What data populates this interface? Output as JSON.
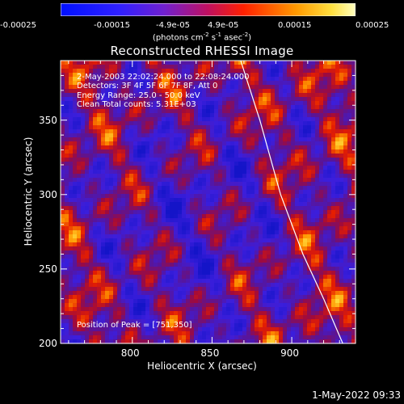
{
  "colorbar": {
    "ticks": [
      "-0.00025",
      "-0.00015",
      "-4.9e-05",
      "4.9e-05",
      "0.00015",
      "0.00025"
    ],
    "unit_main": "(photons cm",
    "unit_sup1": "-2",
    "unit_mid": " s",
    "unit_sup2": "-1",
    "unit_end": " asec",
    "unit_sup3": "-2",
    "unit_close": ")",
    "range": [
      -0.00025,
      0.00025
    ]
  },
  "annotations": {
    "line1": "2-May-2003 22:02:24.000 to 22:08:24.000",
    "line2": "Detectors: 3F 4F 5F 6F 7F 8F, Att 0",
    "line3": "Energy Range: 25.0 - 50.0 keV",
    "line4": "Clean     Total counts: 5.31E+03",
    "peak": "Position of Peak = [751,350]"
  },
  "footer": {
    "timestamp": "1-May-2022 09:33"
  },
  "chart_data": {
    "type": "heatmap",
    "title": "Reconstructed RHESSI Image",
    "xlabel": "Heliocentric X (arcsec)",
    "ylabel": "Heliocentric Y (arcsec)",
    "xlim": [
      755,
      940
    ],
    "ylim": [
      200,
      390
    ],
    "xticks": [
      800,
      850,
      900
    ],
    "yticks": [
      200,
      250,
      300,
      350
    ],
    "limb": [
      [
        868,
        390
      ],
      [
        880,
        350
      ],
      [
        893,
        300
      ],
      [
        907,
        260
      ],
      [
        920,
        230
      ],
      [
        932,
        200
      ]
    ]
  }
}
